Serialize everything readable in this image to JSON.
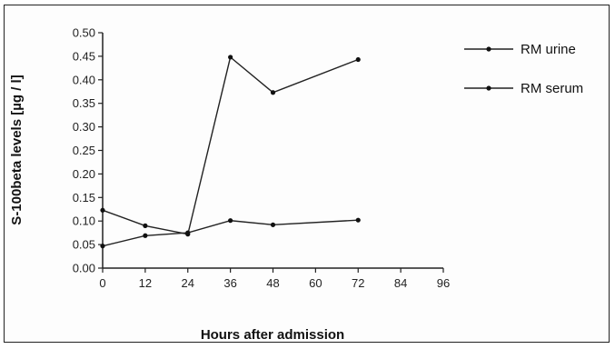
{
  "chart_data": {
    "type": "line",
    "xlabel": "Hours after admission",
    "ylabel": "S-100beta levels [µg / l]",
    "xlim": [
      0,
      96
    ],
    "ylim": [
      0,
      0.5
    ],
    "x_ticks": [
      "0",
      "12",
      "24",
      "36",
      "48",
      "60",
      "72",
      "84",
      "96"
    ],
    "y_ticks": [
      "0.00",
      "0.05",
      "0.10",
      "0.15",
      "0.20",
      "0.25",
      "0.30",
      "0.35",
      "0.40",
      "0.45",
      "0.50"
    ],
    "grid": false,
    "legend_position": "top-right",
    "series": [
      {
        "name": "RM urine",
        "x": [
          0,
          12,
          24,
          36,
          48,
          72
        ],
        "y": [
          0.123,
          0.09,
          0.072,
          0.448,
          0.373,
          0.443
        ]
      },
      {
        "name": "RM serum",
        "x": [
          0,
          12,
          24,
          36,
          48,
          72
        ],
        "y": [
          0.047,
          0.069,
          0.075,
          0.101,
          0.092,
          0.102
        ]
      }
    ]
  }
}
